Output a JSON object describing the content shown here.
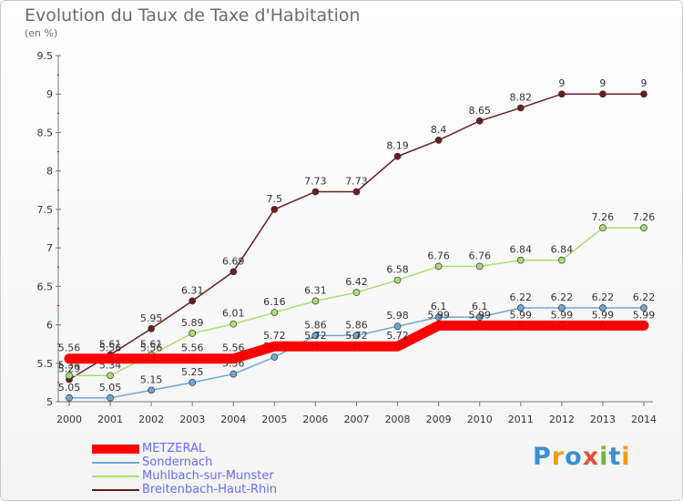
{
  "chart_data": {
    "type": "line",
    "title": "Evolution du Taux de Taxe d'Habitation",
    "subtitle": "(en %)",
    "xlabel": "",
    "ylabel": "",
    "x": [
      "2000",
      "2001",
      "2002",
      "2003",
      "2004",
      "2005",
      "2006",
      "2007",
      "2008",
      "2009",
      "2010",
      "2011",
      "2012",
      "2013",
      "2014"
    ],
    "ylim": [
      5,
      9.5
    ],
    "yticks": [
      "5",
      "5.5",
      "6",
      "6.5",
      "7",
      "7.5",
      "8",
      "8.5",
      "9",
      "9.5"
    ],
    "grid": false,
    "legend_position": "bottom-left",
    "series": [
      {
        "name": "METZERAL",
        "color": "#ff0000",
        "emphasis": true,
        "values": [
          5.56,
          5.56,
          5.56,
          5.56,
          5.56,
          5.72,
          5.72,
          5.72,
          5.72,
          5.99,
          5.99,
          5.99,
          5.99,
          5.99,
          5.99
        ]
      },
      {
        "name": "Sondernach",
        "color": "#6fa8d8",
        "values": [
          5.05,
          5.05,
          5.15,
          5.25,
          5.36,
          5.58,
          5.86,
          5.86,
          5.98,
          6.1,
          6.1,
          6.22,
          6.22,
          6.22,
          6.22
        ]
      },
      {
        "name": "Muhlbach-sur-Munster",
        "color": "#a8e070",
        "values": [
          5.34,
          5.34,
          5.61,
          5.89,
          6.01,
          6.16,
          6.31,
          6.42,
          6.58,
          6.76,
          6.76,
          6.84,
          6.84,
          7.26,
          7.26
        ]
      },
      {
        "name": "Breitenbach-Haut-Rhin",
        "color": "#6b1e1e",
        "values": [
          5.29,
          5.61,
          5.95,
          6.31,
          6.69,
          7.5,
          7.73,
          7.73,
          8.19,
          8.4,
          8.65,
          8.82,
          9,
          9,
          9
        ]
      }
    ]
  },
  "logo": {
    "letters": [
      "P",
      "r",
      "o",
      "x",
      "i",
      "t",
      "i"
    ],
    "colors": [
      "#3b8fd0",
      "#f39c12",
      "#3b8fd0",
      "#e74c3c",
      "#7cb342",
      "#3b8fd0",
      "#f39c12"
    ]
  }
}
